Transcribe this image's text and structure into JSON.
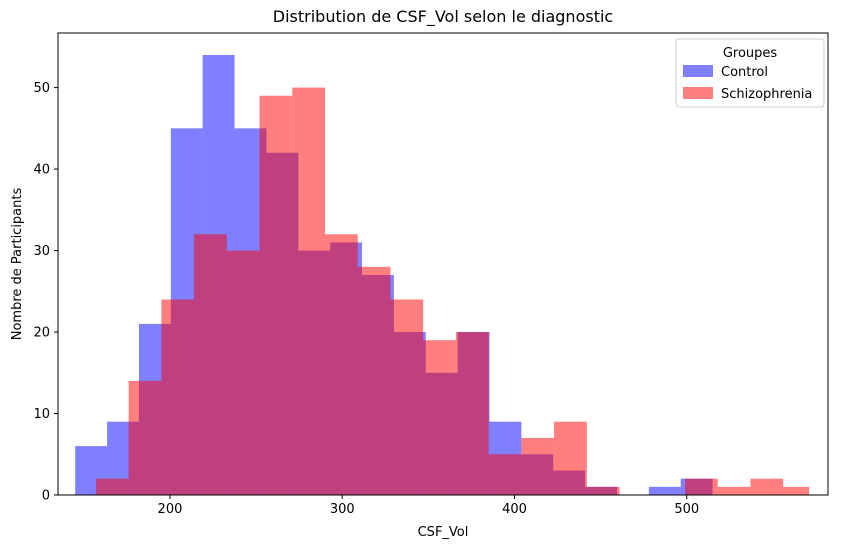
{
  "chart_data": {
    "type": "bar",
    "title": "Distribution de CSF_Vol selon le diagnostic",
    "xlabel": "CSF_Vol",
    "ylabel": "Nombre de Participants",
    "xlim": [
      135,
      582
    ],
    "ylim": [
      0,
      56.7
    ],
    "x_ticks": [
      200,
      300,
      400,
      500
    ],
    "y_ticks": [
      0,
      10,
      20,
      30,
      40,
      50
    ],
    "grid": false,
    "legend": {
      "title": "Groupes",
      "placement": "top-right"
    },
    "series": [
      {
        "name": "Control",
        "color": "#0000ff",
        "alpha": 0.5,
        "bin_edges": [
          145.0,
          163.5,
          182.0,
          200.5,
          219.0,
          237.5,
          256.0,
          274.5,
          293.0,
          311.5,
          330.0,
          348.5,
          367.0,
          385.5,
          404.0,
          422.5,
          441.0,
          459.5,
          478.0,
          496.5,
          515.0
        ],
        "values": [
          6,
          9,
          21,
          45,
          54,
          45,
          42,
          30,
          31,
          27,
          20,
          15,
          20,
          9,
          5,
          3,
          1,
          0,
          1,
          2
        ]
      },
      {
        "name": "Schizophrenia",
        "color": "#ff0000",
        "alpha": 0.5,
        "bin_edges": [
          157.0,
          176.0,
          195.0,
          214.0,
          233.0,
          252.0,
          271.0,
          290.0,
          309.0,
          328.0,
          347.0,
          366.0,
          385.0,
          404.0,
          423.0,
          442.0,
          461.0,
          480.0,
          499.0,
          518.0,
          537.0,
          556.0,
          571.0
        ],
        "values": [
          2,
          14,
          24,
          32,
          30,
          49,
          50,
          32,
          28,
          24,
          19,
          20,
          5,
          7,
          9,
          1,
          0,
          0,
          2,
          1,
          2,
          1
        ]
      }
    ]
  }
}
